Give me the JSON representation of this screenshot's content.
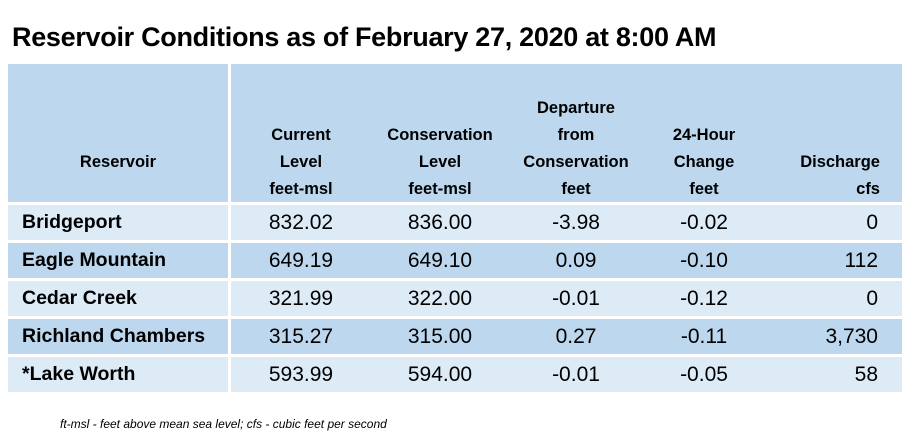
{
  "title": "Reservoir Conditions as of February 27, 2020 at 8:00 AM",
  "columns": [
    {
      "label_lines": [
        "Reservoir"
      ],
      "unit": ""
    },
    {
      "label_lines": [
        "Current",
        "Level"
      ],
      "unit": "feet-msl"
    },
    {
      "label_lines": [
        "Conservation",
        "Level"
      ],
      "unit": "feet-msl"
    },
    {
      "label_lines": [
        "Departure",
        "from",
        "Conservation"
      ],
      "unit": "feet"
    },
    {
      "label_lines": [
        "24-Hour",
        "Change"
      ],
      "unit": "feet"
    },
    {
      "label_lines": [
        "Discharge"
      ],
      "unit": "cfs"
    }
  ],
  "rows": [
    {
      "name": "Bridgeport",
      "current": "832.02",
      "conservation": "836.00",
      "departure": "-3.98",
      "change": "-0.02",
      "discharge": "0"
    },
    {
      "name": "Eagle Mountain",
      "current": "649.19",
      "conservation": "649.10",
      "departure": "0.09",
      "change": "-0.10",
      "discharge": "112"
    },
    {
      "name": "Cedar Creek",
      "current": "321.99",
      "conservation": "322.00",
      "departure": "-0.01",
      "change": "-0.12",
      "discharge": "0"
    },
    {
      "name": "Richland Chambers",
      "current": "315.27",
      "conservation": "315.00",
      "departure": "0.27",
      "change": "-0.11",
      "discharge": "3,730"
    },
    {
      "name": "*Lake Worth",
      "current": "593.99",
      "conservation": "594.00",
      "departure": "-0.01",
      "change": "-0.05",
      "discharge": "58"
    }
  ],
  "footnote": "ft-msl - feet above mean sea level; cfs - cubic feet per second",
  "colors": {
    "header_bg": "#bdd7ee",
    "row_light": "#ddebf7",
    "row_dark": "#bdd7ee"
  }
}
